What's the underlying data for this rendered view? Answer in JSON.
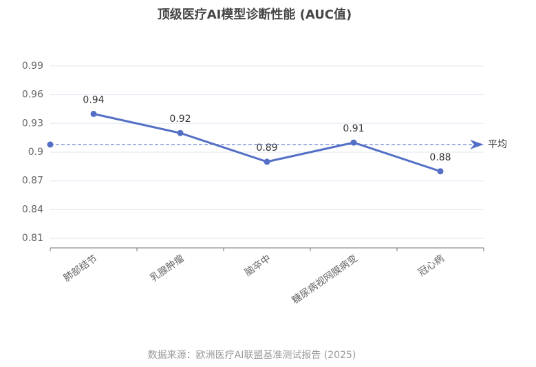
{
  "chart_data": {
    "type": "line",
    "title": "顶级医疗AI模型诊断性能 (AUC值)",
    "categories": [
      "肺部结节",
      "乳腺肿瘤",
      "脑卒中",
      "糖尿病视网膜病变",
      "冠心病"
    ],
    "series": [
      {
        "name": "AUC值",
        "color": "#5470c6",
        "values": [
          0.94,
          0.92,
          0.89,
          0.91,
          0.88
        ]
      }
    ],
    "ylim": [
      0.8,
      1.0
    ],
    "yticks": [
      0.81,
      0.84,
      0.87,
      0.9,
      0.93,
      0.96,
      0.99
    ],
    "grid": true,
    "average": {
      "label": "平均",
      "value": 0.908
    },
    "source": "数据来源：欧洲医疗AI联盟基准测试报告 (2025)"
  }
}
